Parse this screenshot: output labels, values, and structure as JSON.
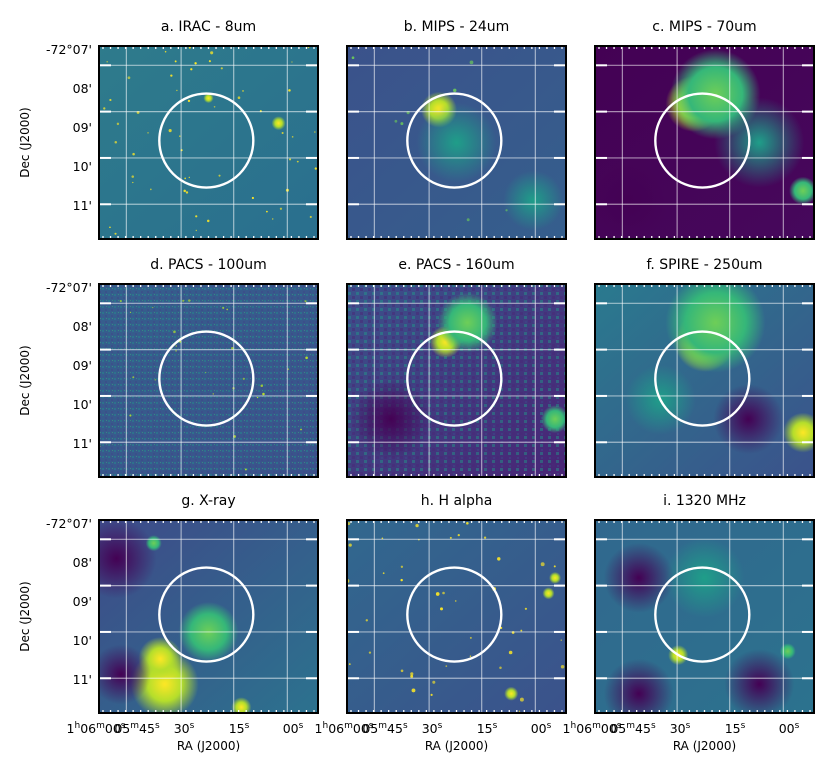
{
  "figure": {
    "panels": [
      {
        "id": "a",
        "title": "a. IRAC - 8um"
      },
      {
        "id": "b",
        "title": "b. MIPS - 24um"
      },
      {
        "id": "c",
        "title": "c. MIPS - 70um"
      },
      {
        "id": "d",
        "title": "d. PACS - 100um"
      },
      {
        "id": "e",
        "title": "e. PACS - 160um"
      },
      {
        "id": "f",
        "title": "f. SPIRE - 250um"
      },
      {
        "id": "g",
        "title": "g. X-ray"
      },
      {
        "id": "h",
        "title": "h. H alpha"
      },
      {
        "id": "i",
        "title": "i. 1320 MHz"
      }
    ],
    "dec_ticks": [
      "-72°07'",
      "08'",
      "09'",
      "10'",
      "11'"
    ],
    "ra_ticks": [
      "1h06m00s",
      "05m45s",
      "30s",
      "15s",
      "00s"
    ],
    "ra_tick_parts": [
      {
        "a": "1",
        "b": "h",
        "c": "06",
        "d": "m",
        "e": "00",
        "f": "s"
      },
      {
        "a": "05",
        "b": "m",
        "c": "45",
        "d": "s"
      },
      {
        "a": "30",
        "b": "s"
      },
      {
        "a": "15",
        "b": "s"
      },
      {
        "a": "00",
        "b": "s"
      }
    ],
    "y_axis_label": "Dec (J2000)",
    "x_axis_label": "RA (J2000)",
    "colormap": {
      "low": "#440154",
      "mid": "#21908c",
      "high": "#fde725"
    },
    "overlay_circle_color": "#ffffff",
    "grid_color": "#ffffff"
  }
}
